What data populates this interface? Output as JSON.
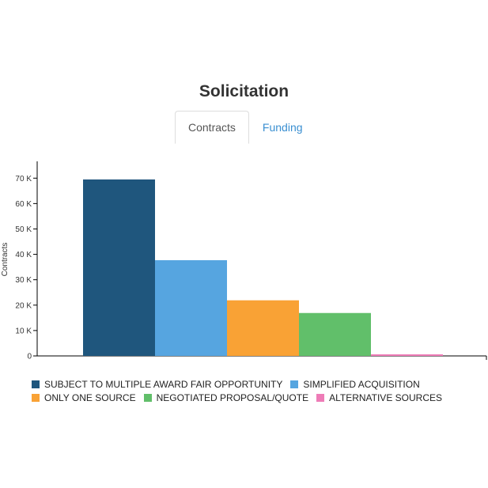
{
  "title": "Solicitation",
  "tabs": [
    {
      "label": "Contracts",
      "active": true
    },
    {
      "label": "Funding",
      "active": false
    }
  ],
  "chart_data": {
    "type": "bar",
    "ylabel": "Contracts",
    "xlabel": "",
    "ylim": [
      0,
      76000
    ],
    "yticks": [
      0,
      10000,
      20000,
      30000,
      40000,
      50000,
      60000,
      70000
    ],
    "ytick_labels": [
      "0",
      "10 K",
      "20 K",
      "30 K",
      "40 K",
      "50 K",
      "60 K",
      "70 K"
    ],
    "grid": false,
    "legend_position": "bottom",
    "categories": [
      "SUBJECT TO MULTIPLE AWARD FAIR OPPORTUNITY",
      "SIMPLIFIED ACQUISITION",
      "ONLY ONE SOURCE",
      "NEGOTIATED PROPOSAL/QUOTE",
      "ALTERNATIVE SOURCES"
    ],
    "values": [
      69500,
      37700,
      21900,
      16900,
      600
    ],
    "colors": [
      "#1f567d",
      "#56a5e0",
      "#f9a235",
      "#61bf6a",
      "#ee7cb7"
    ]
  }
}
